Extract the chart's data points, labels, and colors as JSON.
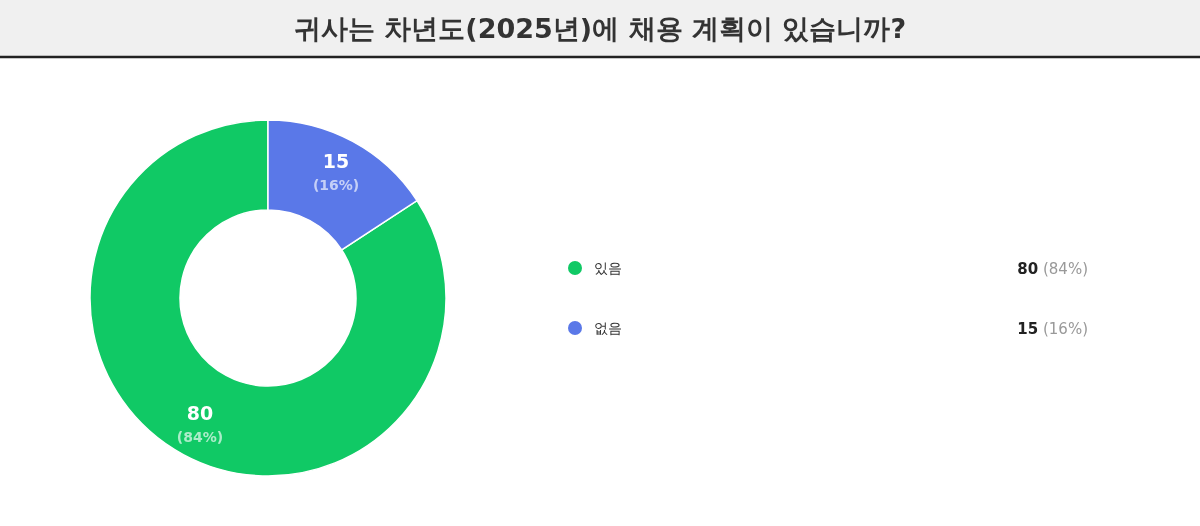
{
  "chart_data": {
    "type": "donut",
    "title": "귀사는 차년도(2025년)에 채용 계획이 있습니까?",
    "categories": [
      "있음",
      "없음"
    ],
    "values": [
      80,
      15
    ],
    "colors": [
      "#10c965",
      "#5a78e8"
    ],
    "value_labels": [
      "80 (84%)",
      "15 (16%)"
    ],
    "legend": "right"
  }
}
